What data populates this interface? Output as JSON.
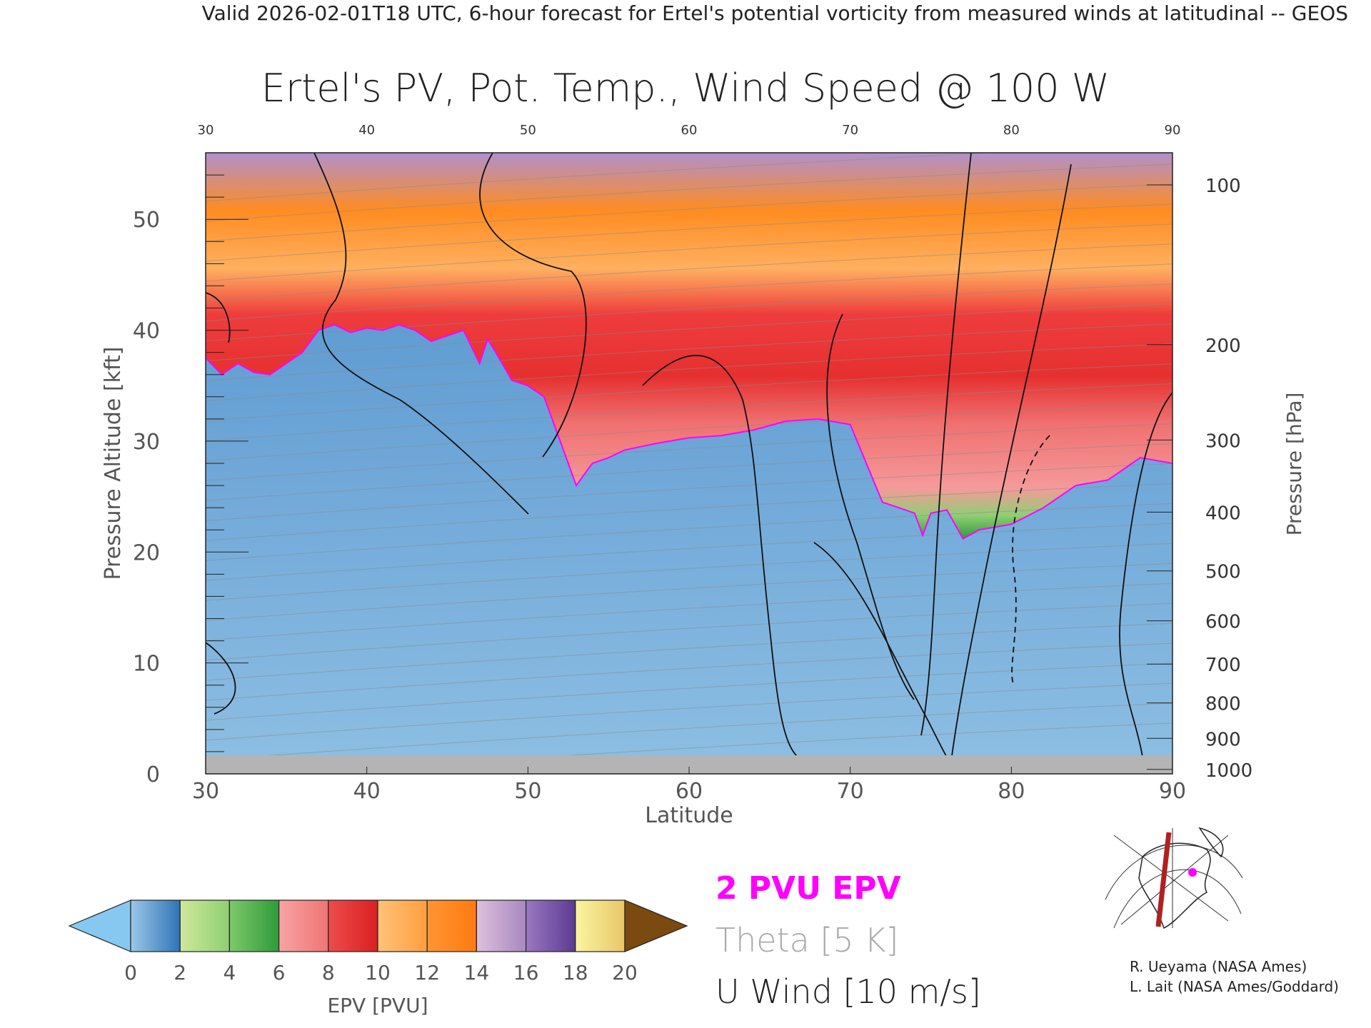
{
  "header": {
    "valid_line": "Valid 2026-02-01T18 UTC, 6-hour forecast for Ertel's potential vorticity from measured winds at latitudinal -- GEOS",
    "title": "Ertel's PV, Pot. Temp., Wind Speed @ 100 W"
  },
  "chart_data": {
    "type": "heatmap",
    "title": "Ertel's PV, Pot. Temp., Wind Speed @ 100 W",
    "xlabel": "Latitude",
    "ylabel": "Pressure Altitude [kft]",
    "y2label": "Pressure [hPa]",
    "xlim": [
      30,
      90
    ],
    "ylim": [
      0,
      56
    ],
    "x_ticks": [
      30,
      40,
      50,
      60,
      70,
      80,
      90
    ],
    "y_ticks": [
      0,
      10,
      20,
      30,
      40,
      50
    ],
    "pressure_ticks": [
      {
        "label": "100",
        "kft": 53.1
      },
      {
        "label": "200",
        "kft": 38.7
      },
      {
        "label": "300",
        "kft": 30.1
      },
      {
        "label": "400",
        "kft": 23.6
      },
      {
        "label": "500",
        "kft": 18.3
      },
      {
        "label": "600",
        "kft": 13.8
      },
      {
        "label": "700",
        "kft": 9.9
      },
      {
        "label": "800",
        "kft": 6.4
      },
      {
        "label": "900",
        "kft": 3.2
      },
      {
        "label": "1000",
        "kft": 0.4
      }
    ],
    "tropopause_2pvu_kft": [
      [
        30,
        37.5
      ],
      [
        31,
        36.0
      ],
      [
        32,
        37.0
      ],
      [
        33,
        36.2
      ],
      [
        34,
        36.0
      ],
      [
        35,
        37.0
      ],
      [
        36,
        38.0
      ],
      [
        37,
        40.0
      ],
      [
        38,
        40.5
      ],
      [
        39,
        39.8
      ],
      [
        40,
        40.2
      ],
      [
        41,
        40.0
      ],
      [
        42,
        40.5
      ],
      [
        43,
        40.0
      ],
      [
        44,
        39.0
      ],
      [
        45,
        39.5
      ],
      [
        46,
        40.0
      ],
      [
        47,
        37.0
      ],
      [
        47.5,
        39.2
      ],
      [
        48,
        38.0
      ],
      [
        49,
        35.5
      ],
      [
        50,
        35.0
      ],
      [
        51,
        34.0
      ],
      [
        52,
        30.0
      ],
      [
        53,
        26.0
      ],
      [
        54,
        28.0
      ],
      [
        55,
        28.5
      ],
      [
        56,
        29.2
      ],
      [
        57,
        29.5
      ],
      [
        58,
        29.8
      ],
      [
        60,
        30.3
      ],
      [
        62,
        30.5
      ],
      [
        64,
        31.0
      ],
      [
        66,
        31.8
      ],
      [
        68,
        32.0
      ],
      [
        70,
        31.5
      ],
      [
        71,
        28.0
      ],
      [
        72,
        24.5
      ],
      [
        73,
        24.0
      ],
      [
        74,
        23.5
      ],
      [
        74.5,
        21.5
      ],
      [
        75,
        23.5
      ],
      [
        76,
        23.8
      ],
      [
        77,
        21.2
      ],
      [
        78,
        22.0
      ],
      [
        80,
        22.5
      ],
      [
        82,
        24.0
      ],
      [
        84,
        26.0
      ],
      [
        86,
        26.5
      ],
      [
        88,
        28.5
      ],
      [
        90,
        28.0
      ]
    ],
    "u_wind_contour_interval": "10 m/s",
    "theta_contour_interval": "5 K"
  },
  "colorbar": {
    "label": "EPV [PVU]",
    "ticks": [
      "0",
      "2",
      "4",
      "6",
      "8",
      "10",
      "12",
      "14",
      "16",
      "18",
      "20"
    ],
    "under_color": "#87c8f0",
    "over_color": "#7a4a10",
    "bins": [
      {
        "from": "#9cc7e8",
        "to": "#2f74b5"
      },
      {
        "from": "#cfe89a",
        "to": "#8fcf73"
      },
      {
        "from": "#7ec96a",
        "to": "#2f9a3a"
      },
      {
        "from": "#f7a4a4",
        "to": "#f07474"
      },
      {
        "from": "#ee4c4c",
        "to": "#d92020"
      },
      {
        "from": "#ffc27a",
        "to": "#ff9f3f"
      },
      {
        "from": "#ff9533",
        "to": "#ff7a10"
      },
      {
        "from": "#dcc0dc",
        "to": "#a888c2"
      },
      {
        "from": "#9a78c2",
        "to": "#5c3a92"
      },
      {
        "from": "#fbf5a0",
        "to": "#e8c768"
      }
    ]
  },
  "legend": {
    "pvu": "2 PVU EPV",
    "theta": "Theta [5 K]",
    "wind": "U Wind [10 m/s]",
    "pvu_color": "#ff00ff",
    "theta_color": "#aaaaaa"
  },
  "credits": {
    "line1": "R. Ueyama (NASA Ames)",
    "line2": "L. Lait (NASA Ames/Goddard)"
  }
}
